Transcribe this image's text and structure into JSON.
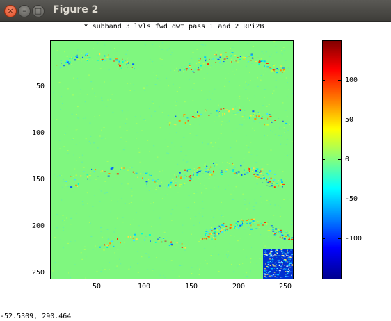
{
  "window": {
    "title": "Figure 2",
    "buttons": {
      "close": "×",
      "minimize": "–",
      "maximize": "□"
    }
  },
  "plot": {
    "title": "Y subband 3 lvls fwd dwt pass 1 and 2 RPi2B",
    "x_ticks": [
      "50",
      "100",
      "150",
      "200",
      "250"
    ],
    "y_ticks": [
      "50",
      "100",
      "150",
      "200",
      "250"
    ],
    "background_color": "#7ff77f"
  },
  "colorbar": {
    "ticks": [
      "100",
      "50",
      "0",
      "-50",
      "-100"
    ],
    "colormap": "jet"
  },
  "status": {
    "coordinates": "-52.5309,  290.464"
  },
  "chart_data": {
    "type": "heatmap",
    "title": "Y subband 3 lvls fwd dwt pass 1 and 2 RPi2B",
    "xlabel": "",
    "ylabel": "",
    "xlim": [
      1,
      256
    ],
    "ylim": [
      256,
      1
    ],
    "x_ticks": [
      50,
      100,
      150,
      200,
      250
    ],
    "y_ticks": [
      50,
      100,
      150,
      200,
      250
    ],
    "colorbar_range": [
      -145,
      145
    ],
    "colorbar_ticks": [
      100,
      50,
      0,
      -50,
      -100
    ],
    "colormap": "jet",
    "grid": false
  }
}
